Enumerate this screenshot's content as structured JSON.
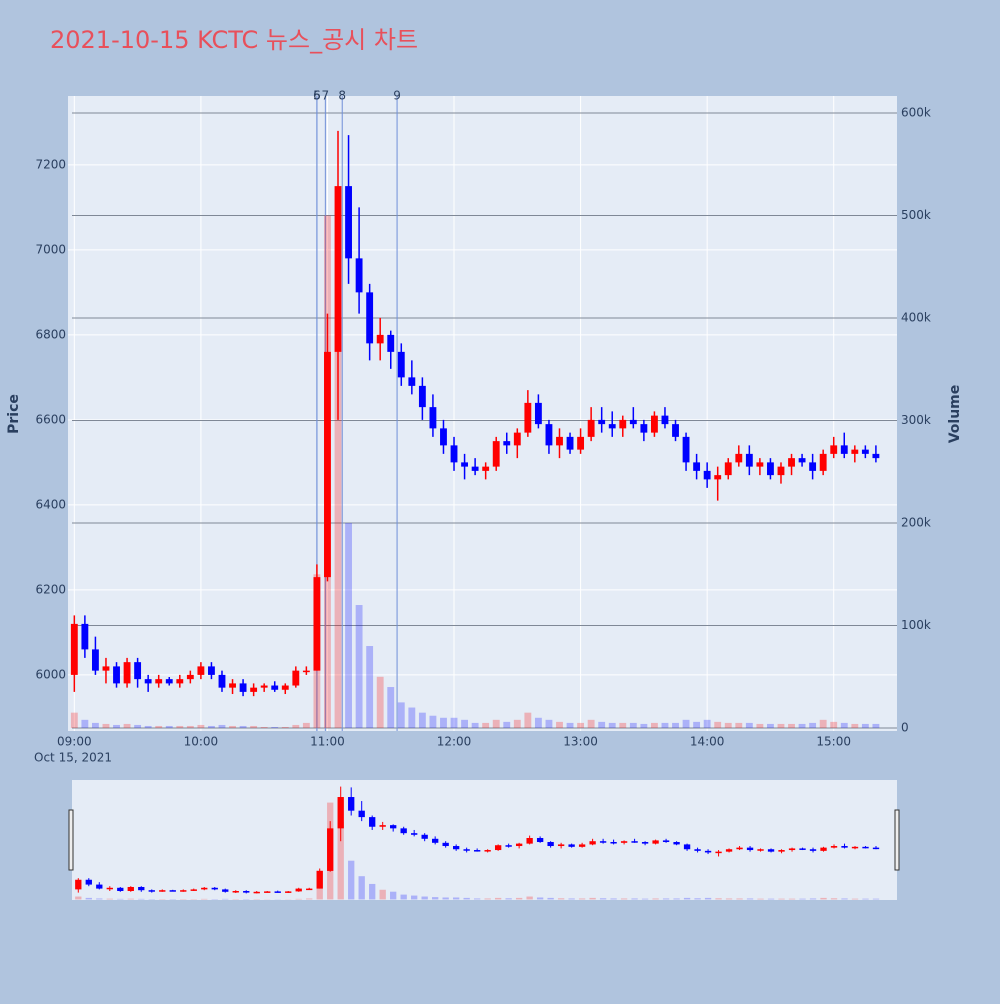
{
  "chart_data": {
    "type": "candlestick",
    "title": "2021-10-15 KCTC 뉴스_공시 차트",
    "y_title": "Price",
    "y2_title": "Volume",
    "x_date_label": "Oct 15, 2021",
    "increasing_color": "#ff0000",
    "decreasing_color": "#0000ff",
    "xlim": [
      "08:57",
      "15:30"
    ],
    "xticks": [
      "09:00",
      "10:00",
      "11:00",
      "12:00",
      "13:00",
      "14:00",
      "15:00"
    ],
    "ylim": [
      5868,
      7362
    ],
    "yticks": [
      6000,
      6200,
      6400,
      6600,
      6800,
      7000,
      7200
    ],
    "y2lim": [
      -2900,
      616600
    ],
    "y2ticks": [
      0,
      {
        "value": 100000,
        "label": "100k"
      },
      {
        "value": 200000,
        "label": "200k"
      },
      {
        "value": 300000,
        "label": "300k"
      },
      {
        "value": 400000,
        "label": "400k"
      },
      {
        "value": 500000,
        "label": "500k"
      },
      {
        "value": 600000,
        "label": "600k"
      }
    ],
    "annotations": [
      {
        "x": "10:55",
        "label": "5"
      },
      {
        "x": "10:55",
        "label": "6"
      },
      {
        "x": "10:59",
        "label": "7"
      },
      {
        "x": "11:07",
        "label": "8"
      },
      {
        "x": "11:33",
        "label": "9"
      }
    ],
    "x": [
      "09:00",
      "09:05",
      "09:10",
      "09:15",
      "09:20",
      "09:25",
      "09:30",
      "09:35",
      "09:40",
      "09:45",
      "09:50",
      "09:55",
      "10:00",
      "10:05",
      "10:10",
      "10:15",
      "10:20",
      "10:25",
      "10:30",
      "10:35",
      "10:40",
      "10:45",
      "10:50",
      "10:55",
      "11:00",
      "11:05",
      "11:10",
      "11:15",
      "11:20",
      "11:25",
      "11:30",
      "11:35",
      "11:40",
      "11:45",
      "11:50",
      "11:55",
      "12:00",
      "12:05",
      "12:10",
      "12:15",
      "12:20",
      "12:25",
      "12:30",
      "12:35",
      "12:40",
      "12:45",
      "12:50",
      "12:55",
      "13:00",
      "13:05",
      "13:10",
      "13:15",
      "13:20",
      "13:25",
      "13:30",
      "13:35",
      "13:40",
      "13:45",
      "13:50",
      "13:55",
      "14:00",
      "14:05",
      "14:10",
      "14:15",
      "14:20",
      "14:25",
      "14:30",
      "14:35",
      "14:40",
      "14:45",
      "14:50",
      "14:55",
      "15:00",
      "15:05",
      "15:10",
      "15:15",
      "15:20"
    ],
    "open": [
      6000,
      6120,
      6060,
      6010,
      6020,
      5980,
      6030,
      5990,
      5980,
      5990,
      5980,
      5990,
      6000,
      6020,
      6000,
      5970,
      5980,
      5960,
      5970,
      5975,
      5965,
      5975,
      6010,
      6010,
      6230,
      6760,
      7150,
      6980,
      6900,
      6780,
      6800,
      6760,
      6700,
      6680,
      6630,
      6580,
      6540,
      6500,
      6490,
      6480,
      6490,
      6550,
      6540,
      6570,
      6640,
      6590,
      6540,
      6560,
      6530,
      6560,
      6600,
      6590,
      6580,
      6600,
      6590,
      6570,
      6610,
      6590,
      6560,
      6500,
      6480,
      6460,
      6470,
      6500,
      6520,
      6490,
      6500,
      6470,
      6490,
      6510,
      6500,
      6480,
      6520,
      6540,
      6520,
      6530,
      6520
    ],
    "high": [
      6140,
      6140,
      6090,
      6040,
      6030,
      6040,
      6040,
      6000,
      6000,
      5995,
      6000,
      6010,
      6030,
      6030,
      6010,
      5990,
      5990,
      5980,
      5980,
      5985,
      5980,
      6020,
      6020,
      6260,
      6850,
      7280,
      7270,
      7100,
      6920,
      6840,
      6810,
      6780,
      6740,
      6700,
      6660,
      6600,
      6560,
      6520,
      6510,
      6500,
      6560,
      6570,
      6580,
      6670,
      6660,
      6600,
      6580,
      6570,
      6580,
      6630,
      6630,
      6620,
      6610,
      6630,
      6600,
      6620,
      6630,
      6600,
      6570,
      6520,
      6500,
      6490,
      6510,
      6540,
      6540,
      6510,
      6510,
      6500,
      6520,
      6520,
      6520,
      6530,
      6560,
      6570,
      6540,
      6540,
      6540
    ],
    "low": [
      5960,
      6040,
      6000,
      5980,
      5970,
      5970,
      5970,
      5960,
      5970,
      5975,
      5970,
      5980,
      5990,
      5990,
      5960,
      5955,
      5950,
      5950,
      5960,
      5960,
      5955,
      5970,
      6000,
      6010,
      6220,
      6600,
      6920,
      6850,
      6740,
      6740,
      6720,
      6680,
      6660,
      6600,
      6560,
      6520,
      6480,
      6460,
      6470,
      6460,
      6480,
      6520,
      6510,
      6560,
      6580,
      6520,
      6510,
      6520,
      6520,
      6550,
      6570,
      6560,
      6560,
      6580,
      6550,
      6560,
      6580,
      6550,
      6480,
      6460,
      6440,
      6410,
      6460,
      6490,
      6470,
      6470,
      6460,
      6450,
      6470,
      6490,
      6460,
      6470,
      6510,
      6510,
      6500,
      6510,
      6500
    ],
    "close": [
      6120,
      6060,
      6010,
      6020,
      5980,
      6030,
      5990,
      5980,
      5990,
      5980,
      5990,
      6000,
      6020,
      6000,
      5970,
      5980,
      5960,
      5970,
      5975,
      5965,
      5975,
      6010,
      6010,
      6230,
      6760,
      7150,
      6980,
      6900,
      6780,
      6800,
      6760,
      6700,
      6680,
      6630,
      6580,
      6540,
      6500,
      6490,
      6480,
      6490,
      6550,
      6540,
      6570,
      6640,
      6590,
      6540,
      6560,
      6530,
      6560,
      6600,
      6590,
      6580,
      6600,
      6590,
      6570,
      6610,
      6590,
      6560,
      6500,
      6480,
      6460,
      6470,
      6500,
      6520,
      6490,
      6500,
      6470,
      6490,
      6510,
      6500,
      6480,
      6520,
      6540,
      6520,
      6530,
      6520,
      6510
    ],
    "volume": [
      15000,
      8000,
      5000,
      4000,
      3000,
      4000,
      3000,
      2000,
      2000,
      2000,
      2000,
      2000,
      3000,
      2000,
      3000,
      2000,
      2000,
      2000,
      1000,
      1000,
      1000,
      3000,
      5000,
      150000,
      500000,
      400000,
      200000,
      120000,
      80000,
      50000,
      40000,
      25000,
      20000,
      15000,
      12000,
      10000,
      10000,
      8000,
      5000,
      5000,
      8000,
      6000,
      8000,
      15000,
      10000,
      8000,
      6000,
      5000,
      5000,
      8000,
      6000,
      5000,
      5000,
      5000,
      4000,
      5000,
      5000,
      5000,
      8000,
      6000,
      8000,
      6000,
      5000,
      5000,
      5000,
      4000,
      4000,
      4000,
      4000,
      4000,
      5000,
      8000,
      6000,
      5000,
      4000,
      4000,
      4000
    ]
  }
}
